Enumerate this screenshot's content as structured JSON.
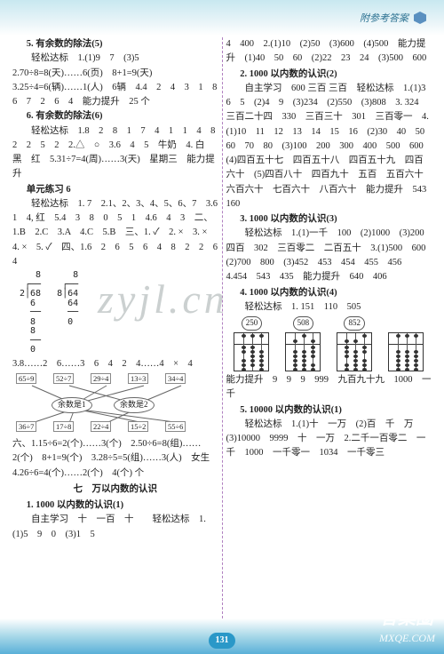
{
  "header": {
    "title": "附参考答案"
  },
  "page_number": "131",
  "watermarks": {
    "center": "zyjl.cn",
    "br_top": "答案圈",
    "br_bot": "MXQE.COM"
  },
  "left": {
    "s1_title": "5. 有余数的除法(5)",
    "s1": "　　轻松达标　1.(1)9　7　(3)5　2.70÷8=8(天)……6(页)　8+1=9(天)　3.25÷4=6(辆)……1(人)　6辆　4.4　2　4　3　1　8　6　7　2　6　4　能力提升　25 个",
    "s2_title": "6. 有余数的除法(6)",
    "s2": "　　轻松达标　1.8　2　8　1　7　4　1　1　4　8　2　2　5　2　2.△　○　3.6　4　5　牛奶　4. 白　黑　红　5.31÷7=4(周)……3(天)　星期三　能力提升",
    "s3_title": "单元练习 6",
    "s3": "　　轻松达标　1. 7　2.1、2、3、4、5、6、7　3.6　1　4, 红　5.4　3　8　0　5　1　4.6　4　3　二、1.B　2.C　3.A　4.C　5.B　三、1. ✓　2. ×　3. ×　4. ×　5. ✓　四、1.6　2　6　5　6　4　8　2　2　6　4",
    "ldiv1_lines": [
      "   8",
      " ┌──",
      "2│68",
      "  6 ",
      "  ──",
      "  8",
      "  8",
      "  ──",
      "  0"
    ],
    "ldiv2_lines": [
      "   8",
      " ┌──",
      "8│64",
      "  64",
      "  ──",
      "  0"
    ],
    "s3b": "3.8……2　6……3　6　4　2　4……4　×　4",
    "net_top": [
      "65÷9",
      "52÷7",
      "29÷4",
      "13÷3",
      "34÷4"
    ],
    "net_mid": [
      "余数是1",
      "余数是2"
    ],
    "net_bot": [
      "36÷7",
      "17÷8",
      "22÷4",
      "15÷2",
      "55÷6"
    ],
    "s3c": "六、1.15÷6=2(个)……3(个)　2.50÷6=8(组)……2(个)　8+1=9(个)　3.28÷5=5(组)……3(人)　女生　4.26÷6=4(个)……2(个)　4(个) 个",
    "s7_title": "七　万以内数的认识",
    "s7_sub": "1. 1000 以内数的认识(1)",
    "s7": "　　自主学习　十　一百　十　　轻松达标　1.(1)5　9　0　(3)1　5"
  },
  "right": {
    "r0": "4　400　2.(1)10　(2)50　(3)600　(4)500　能力提升　(1)40　50　60　(2)22　23　24　(3)500　600",
    "s2_title": "2. 1000 以内数的认识(2)",
    "s2a": "　　自主学习　600 三百 三百　轻松达标　1.(1)3　6　5　(2)4　9　(3)234　(2)550　(3)808　3. 324　三百二十四　330　三百三十　301　三百零一　4.(1)10　11　12　13　14　15　16　(2)30　40　50　60　70　80　(3)100　200　300　400　500　600　(4)四百五十七　四百五十八　四百五十九　四百六十　(5)四百八十　四百九十　五百　五百六十　六百六十　七百六十　八百六十　能力提升　543　160",
    "s3_title": "3. 1000 以内数的认识(3)",
    "s3": "　　轻松达标　1.(1)一千　100　(2)1000　(3)200　四百　302　三百零二　二百五十　3.(1)500　600　(2)700　800　(3)452　453　454　455　456　4.454　543　435　能力提升　640　406",
    "s4_title": "4. 1000 以内数的认识(4)",
    "s4": "　　轻松达标　1. 151　110　505",
    "abacus_bubbles": [
      "250",
      "508",
      "852"
    ],
    "abacus_data": [
      {
        "upper": [
          0,
          0,
          0
        ],
        "lower": [
          2,
          5,
          0
        ]
      },
      {
        "upper": [
          1,
          0,
          1
        ],
        "lower": [
          0,
          0,
          3
        ]
      },
      {
        "upper": [
          1,
          1,
          0
        ],
        "lower": [
          3,
          0,
          2
        ]
      },
      {
        "upper": [
          0,
          0,
          0
        ],
        "lower": [
          0,
          0,
          0
        ]
      }
    ],
    "s4b": "能力提升　9　9　9　999　九百九十九　1000　一千",
    "s5_title": "5. 10000 以内数的认识(1)",
    "s5": "　　轻松达标　1.(1)十　一万　(2)百　千　万　(3)10000　9999　十　一万　2.二千一百零二　一千　1000　一千零一　1034　一千零三"
  },
  "colors": {
    "header_text": "#2a7090",
    "badge_bg": "#2a98c8",
    "divider": "#b080c0",
    "footer_wave": "#5ab0d8"
  }
}
